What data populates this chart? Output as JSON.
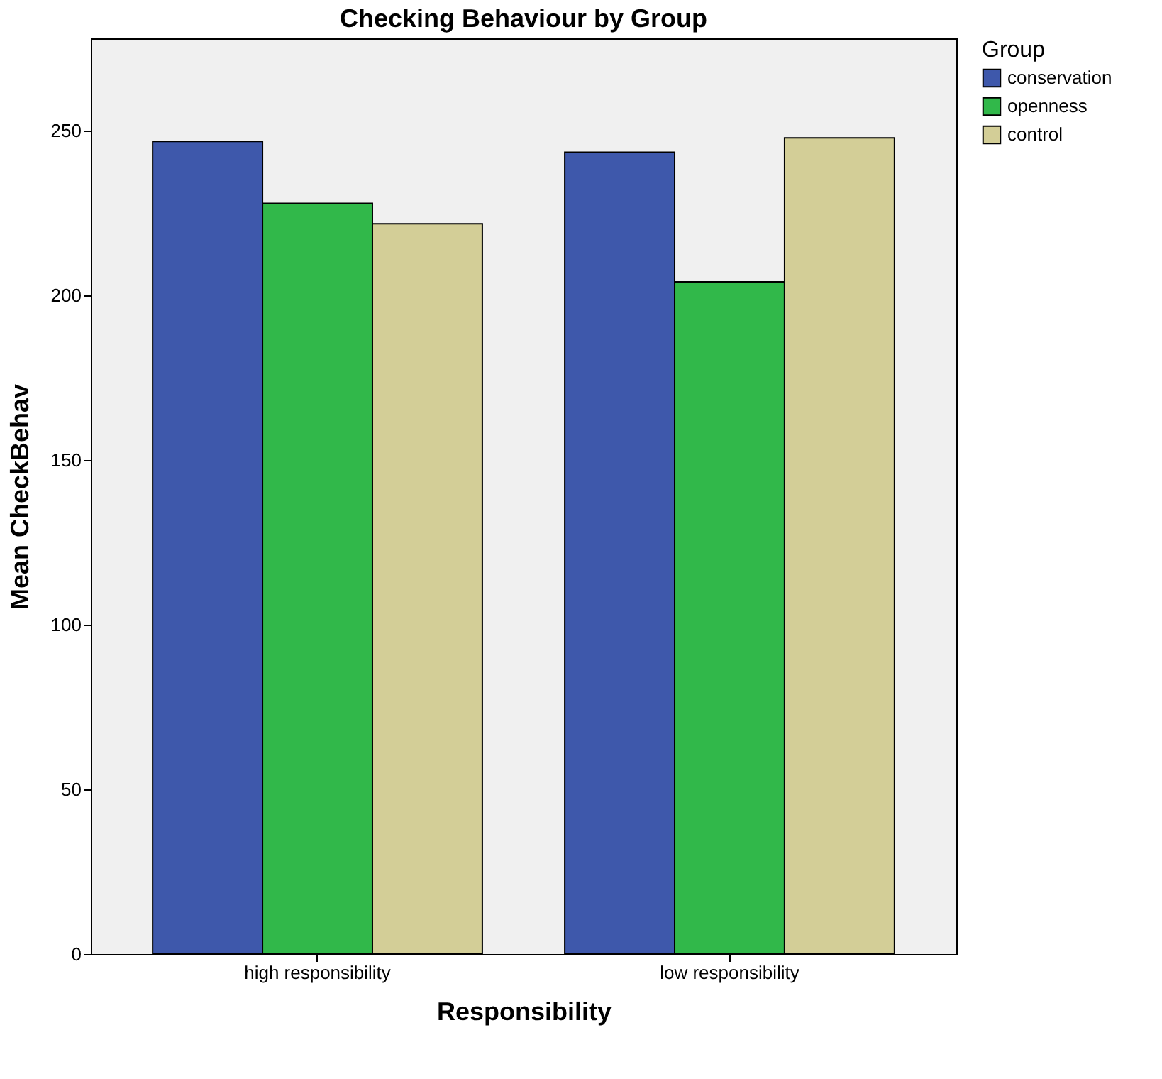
{
  "chart_data": {
    "type": "bar",
    "title": "Checking Behaviour by Group",
    "xlabel": "Responsibility",
    "ylabel": "Mean CheckBehav",
    "legend_title": "Group",
    "categories": [
      "high responsibility",
      "low responsibility"
    ],
    "series": [
      {
        "name": "conservation",
        "color": "#3e58ab",
        "values": [
          246.7,
          243.4
        ]
      },
      {
        "name": "openness",
        "color": "#31b84a",
        "values": [
          227.9,
          204.1
        ]
      },
      {
        "name": "control",
        "color": "#d3ce97",
        "values": [
          221.7,
          247.8
        ]
      }
    ],
    "ylim": [
      0,
      278
    ],
    "yticks": [
      0,
      50,
      100,
      150,
      200,
      250
    ],
    "grid": false,
    "legend": "top right"
  }
}
